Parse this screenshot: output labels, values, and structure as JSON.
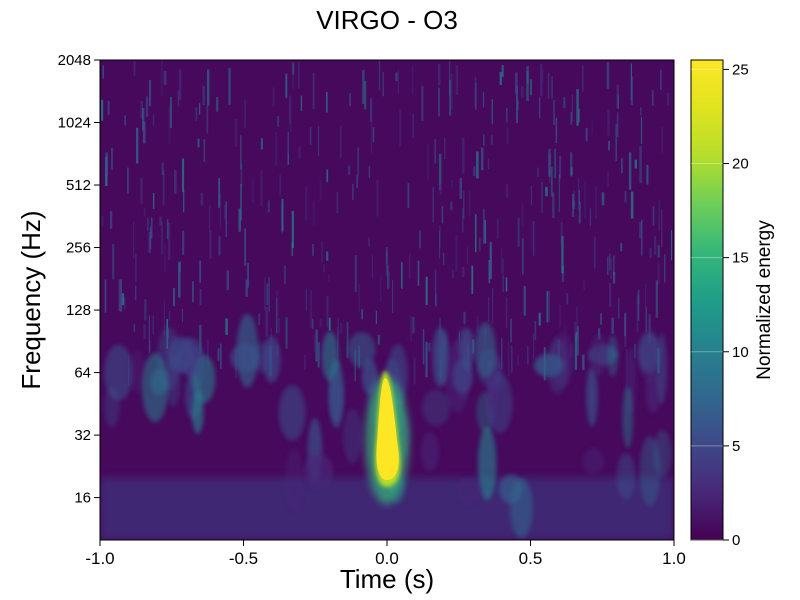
{
  "chart_data": {
    "type": "heatmap",
    "title": "VIRGO - O3",
    "xlabel": "Time (s)",
    "ylabel": "Frequency (Hz)",
    "xlim": [
      -1.0,
      1.0
    ],
    "ylim": [
      10,
      2048
    ],
    "y_scale": "log2",
    "x_ticks": [
      -1.0,
      -0.5,
      0.0,
      0.5,
      1.0
    ],
    "x_tick_labels": [
      "-1.0",
      "-0.5",
      "0.0",
      "0.5",
      "1.0"
    ],
    "y_ticks": [
      16,
      32,
      64,
      128,
      256,
      512,
      1024,
      2048
    ],
    "y_tick_labels": [
      "16",
      "32",
      "64",
      "128",
      "256",
      "512",
      "1024",
      "2048"
    ],
    "colorbar": {
      "label": "Normalized energy",
      "range": [
        0,
        25.5
      ],
      "ticks": [
        0,
        5,
        10,
        15,
        20,
        25
      ],
      "tick_labels": [
        "0",
        "5",
        "10",
        "15",
        "20",
        "25"
      ],
      "colormap": "viridis"
    },
    "features": [
      {
        "time": 0.0,
        "freq_low": 18,
        "freq_high": 65,
        "energy": 25.5
      }
    ],
    "background_energy": 1.5
  }
}
